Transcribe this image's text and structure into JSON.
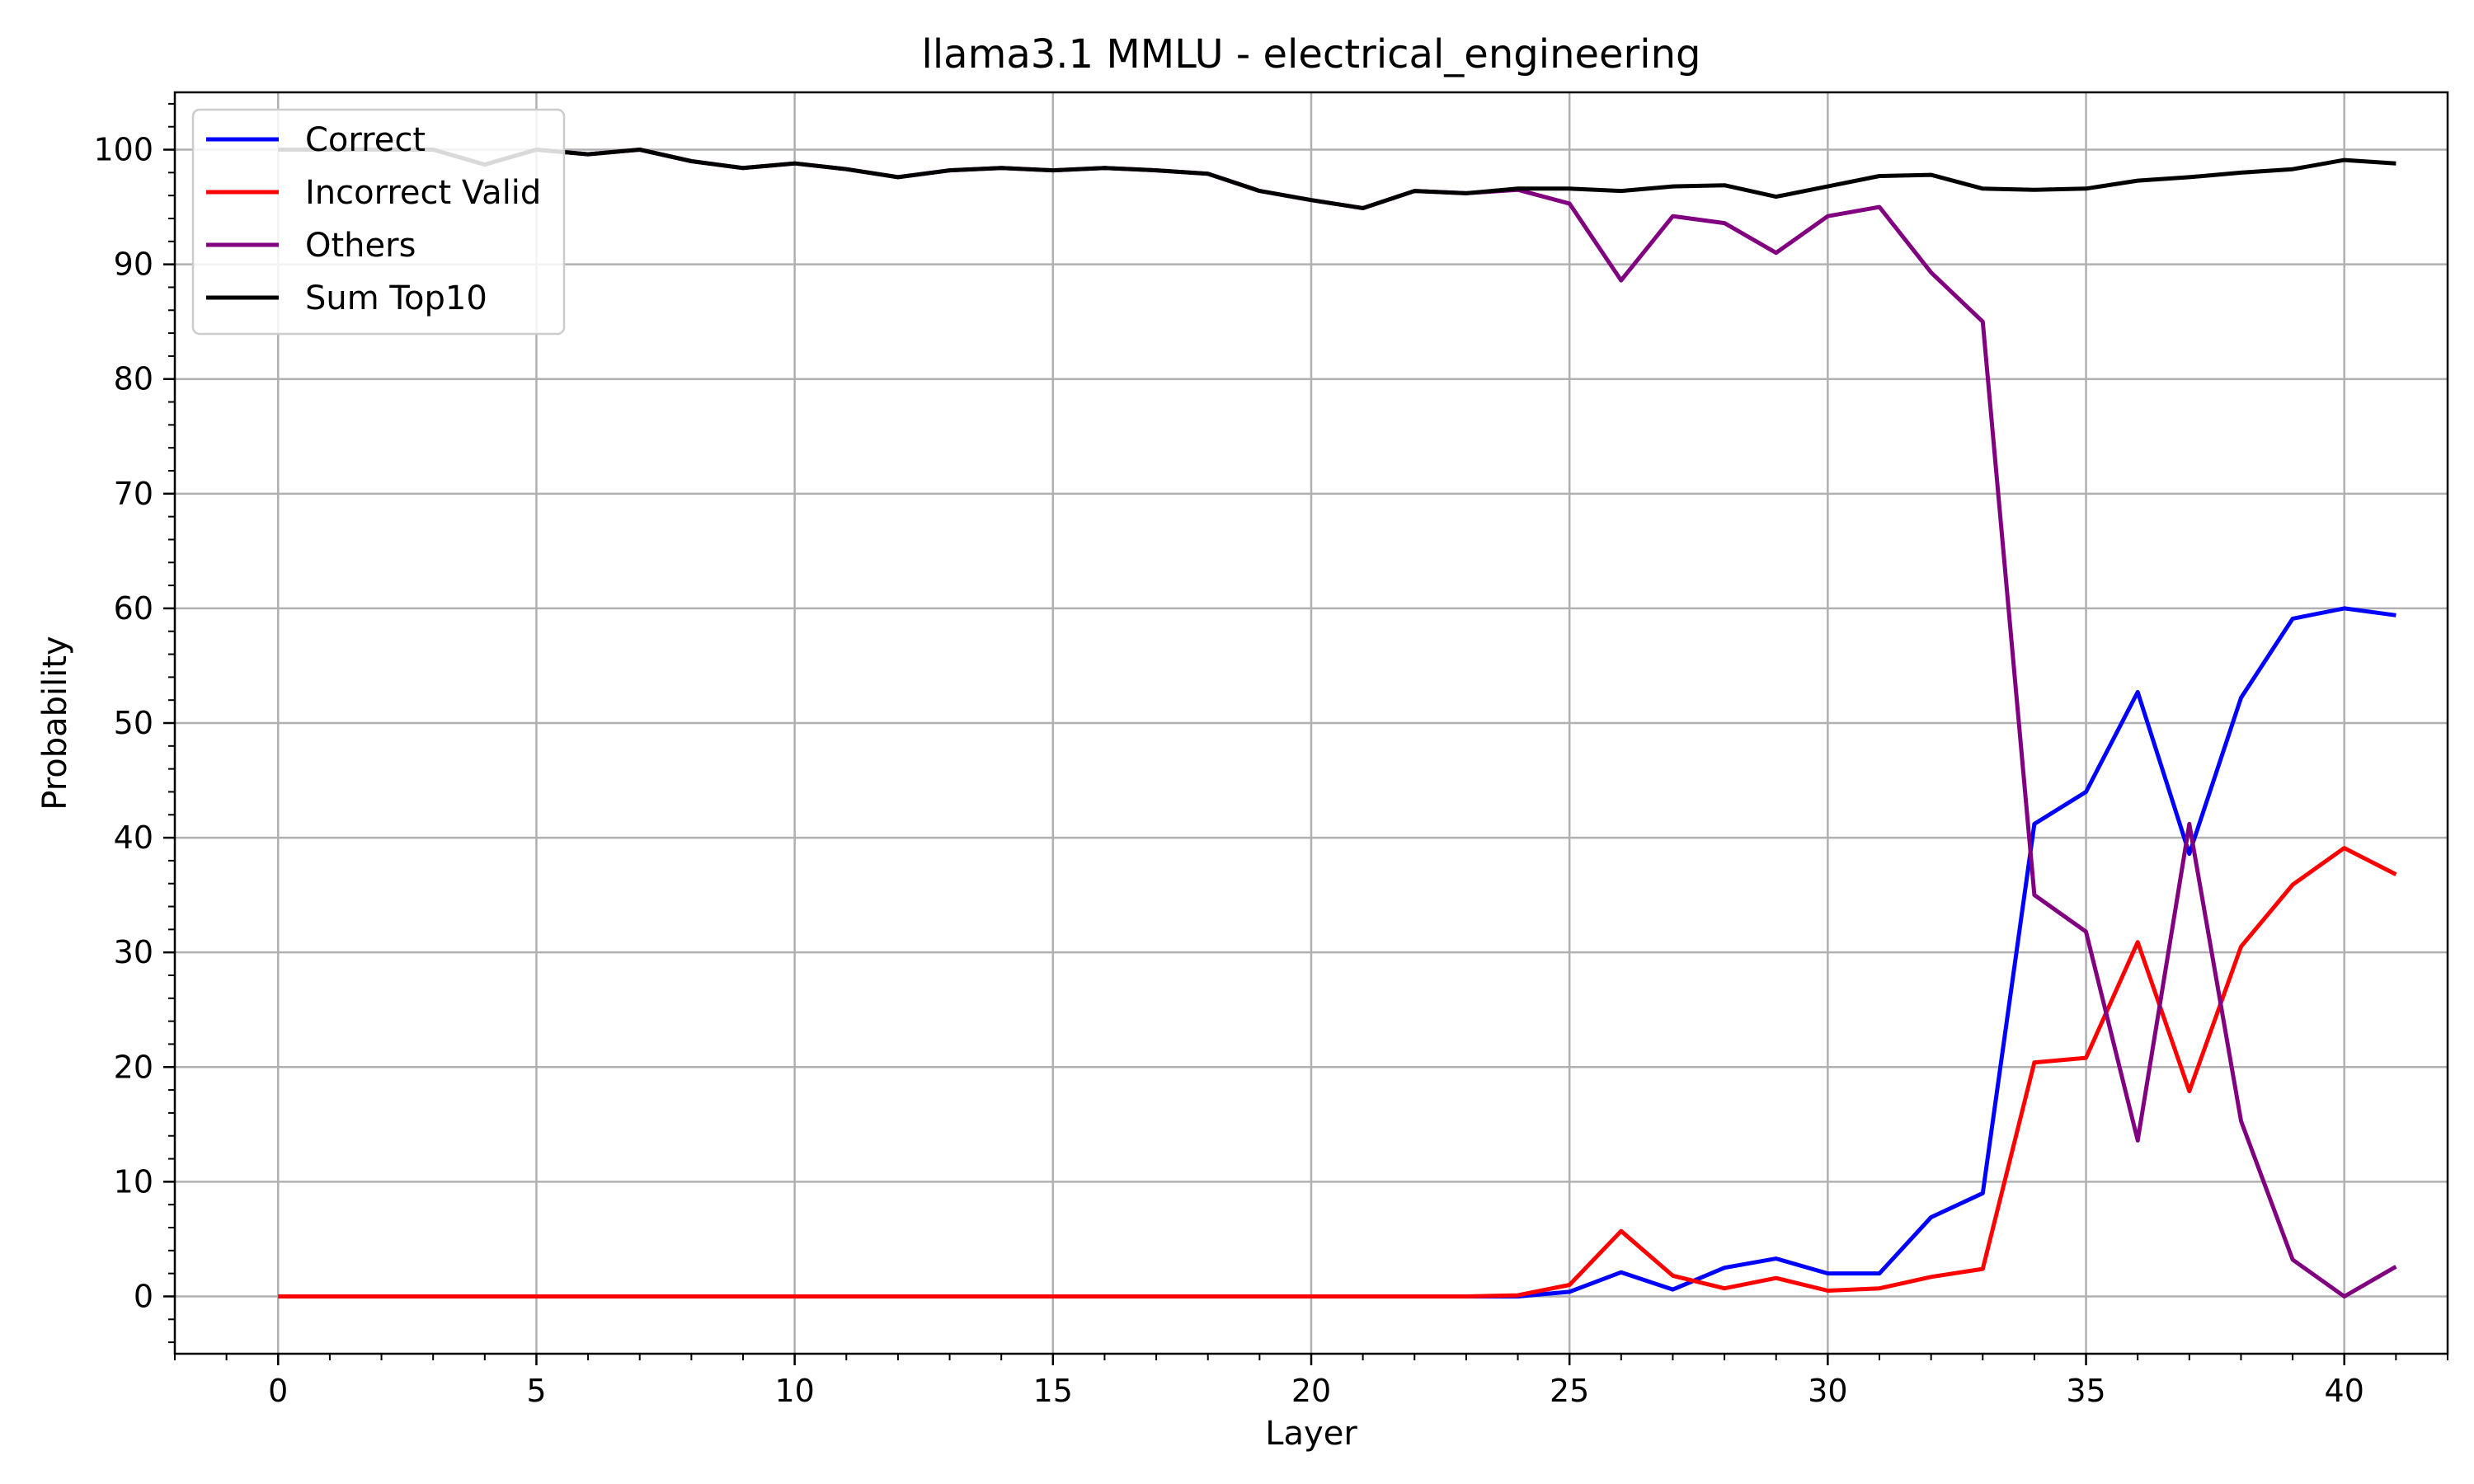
{
  "chart_data": {
    "type": "line",
    "title": "llama3.1 MMLU - electrical_engineering",
    "xlabel": "Layer",
    "ylabel": "Probability",
    "xlim": [
      -2,
      42
    ],
    "ylim": [
      -5,
      105
    ],
    "xticks": [
      0,
      5,
      10,
      15,
      20,
      25,
      30,
      35,
      40
    ],
    "yticks": [
      0,
      10,
      20,
      30,
      40,
      50,
      60,
      70,
      80,
      90,
      100
    ],
    "grid": true,
    "legend_position": "top-left",
    "x": [
      0,
      1,
      2,
      3,
      4,
      5,
      6,
      7,
      8,
      9,
      10,
      11,
      12,
      13,
      14,
      15,
      16,
      17,
      18,
      19,
      20,
      21,
      22,
      23,
      24,
      25,
      26,
      27,
      28,
      29,
      30,
      31,
      32,
      33,
      34,
      35,
      36,
      37,
      38,
      39,
      40,
      41
    ],
    "series": [
      {
        "name": "Correct",
        "color": "#0000ff",
        "values": [
          0,
          0,
          0,
          0,
          0,
          0,
          0,
          0,
          0,
          0,
          0,
          0,
          0,
          0,
          0,
          0,
          0,
          0,
          0,
          0,
          0,
          0,
          0,
          0,
          0,
          0.4,
          2.1,
          0.6,
          2.5,
          3.3,
          2.0,
          2.0,
          6.9,
          9.0,
          41.2,
          44.0,
          52.7,
          38.6,
          52.2,
          59.1,
          60.0,
          59.4
        ]
      },
      {
        "name": "Incorrect Valid",
        "color": "#ff0000",
        "values": [
          0,
          0,
          0,
          0,
          0,
          0,
          0,
          0,
          0,
          0,
          0,
          0,
          0,
          0,
          0,
          0,
          0,
          0,
          0,
          0,
          0,
          0,
          0,
          0,
          0.1,
          1.0,
          5.7,
          1.8,
          0.7,
          1.6,
          0.5,
          0.7,
          1.7,
          2.4,
          20.4,
          20.8,
          30.9,
          17.9,
          30.5,
          35.9,
          39.1,
          36.8
        ]
      },
      {
        "name": "Others",
        "color": "#800080",
        "values": [
          100,
          100,
          100,
          100,
          98.7,
          100,
          99.6,
          100,
          99.0,
          98.4,
          98.8,
          98.3,
          97.6,
          98.2,
          98.4,
          98.2,
          98.4,
          98.2,
          97.9,
          96.4,
          95.6,
          94.9,
          96.4,
          96.2,
          96.5,
          95.3,
          88.6,
          94.2,
          93.6,
          91.0,
          94.2,
          95.0,
          89.3,
          85.0,
          35.0,
          31.8,
          13.6,
          41.2,
          15.3,
          3.2,
          0.0,
          2.6
        ]
      },
      {
        "name": "Sum Top10",
        "color": "#000000",
        "values": [
          100,
          100,
          100,
          100,
          98.7,
          100,
          99.6,
          100,
          99.0,
          98.4,
          98.8,
          98.3,
          97.6,
          98.2,
          98.4,
          98.2,
          98.4,
          98.2,
          97.9,
          96.4,
          95.6,
          94.9,
          96.4,
          96.2,
          96.6,
          96.6,
          96.4,
          96.8,
          96.9,
          95.9,
          96.8,
          97.7,
          97.8,
          96.6,
          96.5,
          96.6,
          97.3,
          97.6,
          98.0,
          98.3,
          99.1,
          98.8
        ]
      }
    ]
  }
}
